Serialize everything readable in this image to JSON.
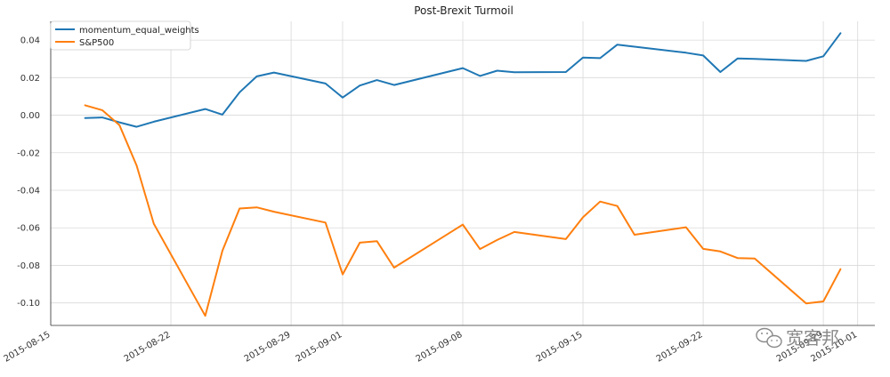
{
  "chart_data": {
    "type": "line",
    "title": "Post-Brexit Turmoil",
    "xlabel": "",
    "ylabel": "",
    "x_range": [
      "2015-08-15",
      "2015-10-02"
    ],
    "ylim": [
      -0.112,
      0.05
    ],
    "y_ticks": [
      {
        "value": 0.04,
        "label": "0.04"
      },
      {
        "value": 0.02,
        "label": "0.02"
      },
      {
        "value": 0.0,
        "label": "0.00"
      },
      {
        "value": -0.02,
        "label": "-0.02"
      },
      {
        "value": -0.04,
        "label": "-0.04"
      },
      {
        "value": -0.06,
        "label": "-0.06"
      },
      {
        "value": -0.08,
        "label": "-0.08"
      },
      {
        "value": -0.1,
        "label": "-0.10"
      }
    ],
    "x_ticks": [
      {
        "date": "2015-08-15",
        "label": "2015-08-15"
      },
      {
        "date": "2015-08-22",
        "label": "2015-08-22"
      },
      {
        "date": "2015-08-29",
        "label": "2015-08-29"
      },
      {
        "date": "2015-09-01",
        "label": "2015-09-01"
      },
      {
        "date": "2015-09-08",
        "label": "2015-09-08"
      },
      {
        "date": "2015-09-15",
        "label": "2015-09-15"
      },
      {
        "date": "2015-09-22",
        "label": "2015-09-22"
      },
      {
        "date": "2015-09-29",
        "label": "2015-09-29"
      },
      {
        "date": "2015-10-01",
        "label": "2015-10-01"
      }
    ],
    "grid": true,
    "legend_position": "top-left",
    "x": [
      "2015-08-17",
      "2015-08-18",
      "2015-08-19",
      "2015-08-20",
      "2015-08-21",
      "2015-08-24",
      "2015-08-25",
      "2015-08-26",
      "2015-08-27",
      "2015-08-28",
      "2015-08-31",
      "2015-09-01",
      "2015-09-02",
      "2015-09-03",
      "2015-09-04",
      "2015-09-08",
      "2015-09-09",
      "2015-09-10",
      "2015-09-11",
      "2015-09-14",
      "2015-09-15",
      "2015-09-16",
      "2015-09-17",
      "2015-09-18",
      "2015-09-21",
      "2015-09-22",
      "2015-09-23",
      "2015-09-24",
      "2015-09-25",
      "2015-09-28",
      "2015-09-29",
      "2015-09-30"
    ],
    "series": [
      {
        "name": "momentum_equal_weights",
        "color": "#1f77b4",
        "values": [
          -0.0015,
          -0.0012,
          -0.0038,
          -0.0062,
          -0.0035,
          0.0033,
          0.0003,
          0.0122,
          0.0207,
          0.0227,
          0.0169,
          0.0094,
          0.0158,
          0.0187,
          0.0161,
          0.0251,
          0.0209,
          0.0237,
          0.0229,
          0.023,
          0.0307,
          0.0304,
          0.0376,
          0.0365,
          0.0333,
          0.0318,
          0.023,
          0.0302,
          0.03,
          0.0289,
          0.0314,
          0.0437
        ]
      },
      {
        "name": "S&P500",
        "color": "#ff7f0e",
        "values": [
          0.0053,
          0.0027,
          -0.0053,
          -0.0268,
          -0.0578,
          -0.1069,
          -0.0722,
          -0.0497,
          -0.0491,
          -0.0514,
          -0.0572,
          -0.0848,
          -0.0679,
          -0.0671,
          -0.0812,
          -0.0583,
          -0.0713,
          -0.0665,
          -0.0622,
          -0.066,
          -0.0544,
          -0.046,
          -0.0484,
          -0.0637,
          -0.0597,
          -0.0712,
          -0.0726,
          -0.0761,
          -0.0764,
          -0.1003,
          -0.0992,
          -0.082
        ]
      }
    ]
  },
  "watermark": {
    "text": "宽客邦",
    "icon": "wechat-icon"
  }
}
